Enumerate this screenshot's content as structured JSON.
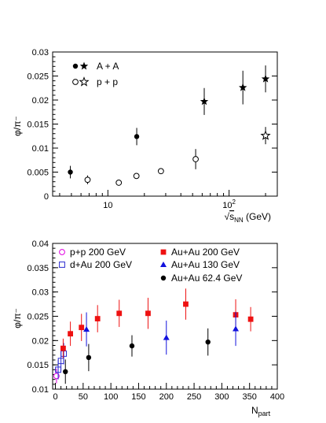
{
  "chart_data": [
    {
      "type": "scatter",
      "title": "",
      "xlabel_prefix": "√",
      "xlabel_var": "s",
      "xlabel_sub": "NN",
      "xlabel_unit": " (GeV)",
      "ylabel": "φ/π⁻",
      "xscale": "log",
      "xlim": [
        3.5,
        250
      ],
      "ylim": [
        0,
        0.03
      ],
      "yticks": [
        0,
        0.005,
        0.01,
        0.015,
        0.02,
        0.025,
        0.03
      ],
      "ytick_labels": [
        "0",
        "0.005",
        "0.01",
        "0.015",
        "0.02",
        "0.025",
        "0.03"
      ],
      "xtick_labels": [
        {
          "value": 10,
          "label": "10"
        },
        {
          "value": 100,
          "label": "10",
          "exponent": "2"
        }
      ],
      "legend_position": "top-left",
      "legend": [
        {
          "label": "A + A",
          "markers": [
            "filled-circle",
            "filled-star"
          ]
        },
        {
          "label": "p + p",
          "markers": [
            "open-circle",
            "open-star"
          ]
        }
      ],
      "series": [
        {
          "id": "aa_circle",
          "marker": "filled-circle",
          "points": [
            {
              "x": 4.9,
              "y": 0.005,
              "err": 0.0013
            },
            {
              "x": 17.3,
              "y": 0.0124,
              "err": 0.0018
            }
          ]
        },
        {
          "id": "aa_star",
          "marker": "filled-star",
          "points": [
            {
              "x": 62.4,
              "y": 0.0197,
              "err": 0.0028
            },
            {
              "x": 130,
              "y": 0.0226,
              "err": 0.0035
            },
            {
              "x": 200,
              "y": 0.0244,
              "err": 0.0028
            }
          ]
        },
        {
          "id": "pp_circle",
          "marker": "open-circle",
          "points": [
            {
              "x": 6.8,
              "y": 0.0034,
              "err": 0.0009
            },
            {
              "x": 12.3,
              "y": 0.0028,
              "err": 0.0005
            },
            {
              "x": 17.2,
              "y": 0.0042,
              "err": 0.0005
            },
            {
              "x": 27.4,
              "y": 0.0052,
              "err": 0.0005
            },
            {
              "x": 53,
              "y": 0.0077,
              "err": 0.0021
            }
          ]
        },
        {
          "id": "pp_star",
          "marker": "open-star",
          "points": [
            {
              "x": 200,
              "y": 0.0126,
              "err": 0.0018
            }
          ]
        }
      ]
    },
    {
      "type": "scatter",
      "title": "",
      "xlabel": "N",
      "xlabel_sub": "part",
      "ylabel": "φ/π⁻",
      "xlim": [
        -5,
        400
      ],
      "ylim": [
        0.01,
        0.04
      ],
      "xticks": [
        0,
        50,
        100,
        150,
        200,
        250,
        300,
        350,
        400
      ],
      "xtick_labels": [
        "0",
        "50",
        "100",
        "150",
        "200",
        "250",
        "300",
        "350",
        "400"
      ],
      "yticks": [
        0.01,
        0.015,
        0.02,
        0.025,
        0.03,
        0.035,
        0.04
      ],
      "ytick_labels": [
        "0.01",
        "0.015",
        "0.02",
        "0.025",
        "0.03",
        "0.035",
        "0.04"
      ],
      "legend_position": "top",
      "series": [
        {
          "name": "p+p 200 GeV",
          "marker": "open-circle",
          "color": "#e000e0",
          "points": [
            {
              "x": 2,
              "y": 0.0127,
              "err": 0.0015
            }
          ]
        },
        {
          "name": "d+Au 200 GeV",
          "marker": "open-square",
          "color": "#2a2ad0",
          "points": [
            {
              "x": 5,
              "y": 0.014,
              "err": 0.002
            },
            {
              "x": 10,
              "y": 0.0158,
              "err": 0.002
            },
            {
              "x": 15,
              "y": 0.0173,
              "err": 0.0022
            }
          ]
        },
        {
          "name": "Au+Au 200 GeV",
          "marker": "filled-square",
          "color": "#ee1111",
          "points": [
            {
              "x": 14,
              "y": 0.0184,
              "err": 0.002
            },
            {
              "x": 27,
              "y": 0.0214,
              "err": 0.0025
            },
            {
              "x": 47,
              "y": 0.0227,
              "err": 0.0028
            },
            {
              "x": 76,
              "y": 0.0245,
              "err": 0.0028
            },
            {
              "x": 115,
              "y": 0.0256,
              "err": 0.0028
            },
            {
              "x": 167,
              "y": 0.0256,
              "err": 0.0032
            },
            {
              "x": 235,
              "y": 0.0275,
              "err": 0.0032
            },
            {
              "x": 325,
              "y": 0.0253,
              "err": 0.0032
            },
            {
              "x": 352,
              "y": 0.0244,
              "err": 0.0025
            }
          ]
        },
        {
          "name": "Au+Au 130 GeV",
          "marker": "filled-triangle",
          "color": "#1111dd",
          "points": [
            {
              "x": 56,
              "y": 0.0223,
              "err": 0.0035
            },
            {
              "x": 200,
              "y": 0.0206,
              "err": 0.0035
            },
            {
              "x": 325,
              "y": 0.0224,
              "err": 0.0035
            }
          ]
        },
        {
          "name": "Au+Au 62.4 GeV",
          "marker": "filled-circle",
          "color": "#000000",
          "points": [
            {
              "x": 18,
              "y": 0.0136,
              "err": 0.0025
            },
            {
              "x": 60,
              "y": 0.0165,
              "err": 0.0028
            },
            {
              "x": 138,
              "y": 0.0189,
              "err": 0.0022
            },
            {
              "x": 275,
              "y": 0.0197,
              "err": 0.0028
            }
          ]
        }
      ]
    }
  ]
}
